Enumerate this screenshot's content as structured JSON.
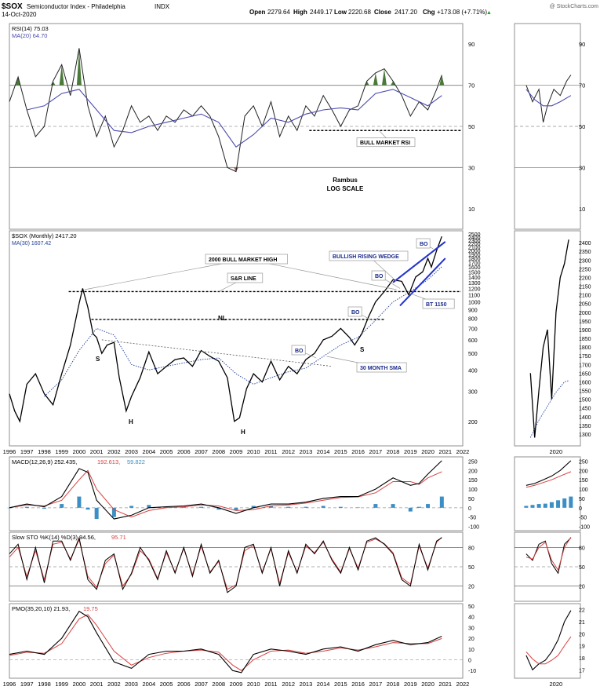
{
  "header": {
    "symbol": "$SOX",
    "name": "Semiconductor Index - Philadelphia",
    "exchange": "INDX",
    "date": "14-Oct-2020",
    "open_label": "Open",
    "open": "2279.64",
    "high_label": "High",
    "high": "2449.17",
    "low_label": "Low",
    "low": "2220.68",
    "close_label": "Close",
    "close": "2417.20",
    "chg_label": "Chg",
    "chg": "+173.08 (+7.71%)",
    "chg_arrow": "▲",
    "watermark": "@ StockCharts.com"
  },
  "colors": {
    "price": "#000000",
    "sma": "#1f3d99",
    "rsi_ma": "#4b4bb0",
    "rsi_fill_high": "#4a7a3a",
    "rsi_fill_low": "#b05a5a",
    "macd_hist": "#3b8fc4",
    "signal": "#d94040",
    "wedge": "#2233cc",
    "callout_text": "#1a2a8a",
    "gray_line": "#7f7f7f",
    "panel_border": "#8f8f8f"
  },
  "chart_data": [
    {
      "type": "line",
      "id": "rsi",
      "legend": [
        "RSI(14) 75.03",
        "MA(20) 64.70"
      ],
      "ylim": [
        0,
        100
      ],
      "yticks": [
        10,
        30,
        50,
        70,
        90
      ],
      "reference_lines": [
        30,
        50,
        70
      ],
      "series": [
        {
          "name": "RSI(14)",
          "x": [
            1996,
            1996.5,
            1997,
            1997.5,
            1998,
            1998.5,
            1999,
            1999.5,
            2000,
            2000.5,
            2001,
            2001.5,
            2002,
            2002.5,
            2003,
            2003.5,
            2004,
            2004.5,
            2005,
            2005.5,
            2006,
            2006.5,
            2007,
            2007.5,
            2008,
            2008.5,
            2009,
            2009.5,
            2010,
            2010.5,
            2011,
            2011.5,
            2012,
            2012.5,
            2013,
            2013.5,
            2014,
            2014.5,
            2015,
            2015.5,
            2016,
            2016.5,
            2017,
            2017.5,
            2018,
            2018.5,
            2019,
            2019.5,
            2020,
            2020.5,
            2020.8
          ],
          "values": [
            62,
            74,
            58,
            45,
            50,
            72,
            80,
            65,
            88,
            60,
            45,
            55,
            40,
            48,
            60,
            52,
            55,
            48,
            55,
            52,
            58,
            55,
            60,
            55,
            45,
            30,
            28,
            55,
            60,
            50,
            62,
            45,
            55,
            48,
            60,
            55,
            65,
            58,
            50,
            58,
            60,
            72,
            76,
            78,
            72,
            65,
            55,
            62,
            58,
            68,
            75
          ]
        },
        {
          "name": "MA(20)",
          "x": [
            1997,
            1998,
            1999,
            2000,
            2001,
            2002,
            2003,
            2004,
            2005,
            2006,
            2007,
            2008,
            2009,
            2010,
            2011,
            2012,
            2013,
            2014,
            2015,
            2016,
            2017,
            2018,
            2019,
            2020,
            2020.8
          ],
          "values": [
            58,
            60,
            66,
            68,
            58,
            48,
            47,
            50,
            52,
            54,
            56,
            52,
            40,
            46,
            54,
            52,
            56,
            58,
            59,
            58,
            66,
            68,
            64,
            60,
            65
          ]
        }
      ],
      "annotations": [
        "BULL MARKET RSI",
        "Rambus",
        "LOG SCALE"
      ]
    },
    {
      "type": "line",
      "id": "price",
      "legend": [
        "$SOX (Monthly) 2417.20",
        "MA(30) 1607.42"
      ],
      "scale": "log",
      "ylim": [
        150,
        2500
      ],
      "yticks": [
        200,
        300,
        400,
        500,
        600,
        700,
        800,
        900,
        1000,
        1100,
        1200,
        1300,
        1400,
        1500,
        1600,
        1700,
        1800,
        1900,
        2000,
        2100,
        2200,
        2300,
        2400,
        2500
      ],
      "xticks": [
        "1996",
        "1997",
        "1998",
        "1999",
        "2000",
        "2001",
        "2002",
        "2003",
        "2004",
        "2005",
        "2006",
        "2007",
        "2008",
        "2009",
        "2010",
        "2011",
        "2012",
        "2013",
        "2014",
        "2015",
        "2016",
        "2017",
        "2018",
        "2019",
        "2020",
        "2021",
        "2022"
      ],
      "series": [
        {
          "name": "$SOX (Monthly)",
          "x": [
            1996,
            1996.3,
            1996.6,
            1997,
            1997.5,
            1998,
            1998.5,
            1999,
            1999.5,
            2000,
            2000.2,
            2000.5,
            2000.8,
            2001,
            2001.3,
            2001.6,
            2002,
            2002.3,
            2002.7,
            2003,
            2003.5,
            2004,
            2004.5,
            2005,
            2005.5,
            2006,
            2006.5,
            2007,
            2007.5,
            2008,
            2008.5,
            2008.9,
            2009.2,
            2009.6,
            2010,
            2010.5,
            2011,
            2011.5,
            2012,
            2012.5,
            2013,
            2013.5,
            2014,
            2014.5,
            2015,
            2015.5,
            2015.8,
            2016.2,
            2016.6,
            2017,
            2017.5,
            2018,
            2018.5,
            2018.9,
            2019.3,
            2019.7,
            2020,
            2020.2,
            2020.5,
            2020.8
          ],
          "values": [
            290,
            230,
            200,
            330,
            380,
            290,
            250,
            380,
            560,
            980,
            1200,
            930,
            650,
            620,
            500,
            560,
            580,
            360,
            230,
            280,
            360,
            510,
            380,
            420,
            460,
            470,
            420,
            520,
            480,
            450,
            360,
            200,
            210,
            310,
            380,
            340,
            450,
            350,
            420,
            380,
            460,
            500,
            600,
            630,
            700,
            620,
            560,
            650,
            820,
            1000,
            1150,
            1350,
            1320,
            1100,
            1400,
            1500,
            1800,
            1600,
            2000,
            2417
          ]
        },
        {
          "name": "MA(30)",
          "x": [
            1998,
            1999,
            2000,
            2001,
            2002,
            2003,
            2004,
            2005,
            2006,
            2007,
            2008,
            2009,
            2010,
            2011,
            2012,
            2013,
            2014,
            2015,
            2016,
            2017,
            2018,
            2019,
            2020,
            2020.8
          ],
          "values": [
            280,
            350,
            520,
            700,
            640,
            430,
            400,
            420,
            440,
            460,
            470,
            380,
            330,
            360,
            390,
            410,
            480,
            560,
            620,
            780,
            1000,
            1150,
            1350,
            1607
          ]
        }
      ],
      "annotations": [
        "2000 BULL MARKET HIGH",
        "S&R LINE",
        "NL",
        "S",
        "H",
        "H",
        "S",
        "BO",
        "BO",
        "BO",
        "BO",
        "30 MONTH SMA",
        "BULLISH RISING WEDGE",
        "BT 1150"
      ],
      "levels": [
        {
          "value": 1150,
          "label": "S&R LINE"
        },
        {
          "value": 800,
          "label": "NL"
        }
      ],
      "inset": {
        "xticks": [
          "2020"
        ],
        "yticks": [
          1300,
          1350,
          1400,
          1450,
          1500,
          1550,
          1600,
          1650,
          1700,
          1750,
          1800,
          1850,
          1900,
          1950,
          2000,
          2050,
          2100,
          2150,
          2200,
          2250,
          2300,
          2350,
          2400
        ],
        "ylim": [
          1250,
          2450
        ],
        "x": [
          2019.9,
          2020.0,
          2020.1,
          2020.2,
          2020.3,
          2020.4,
          2020.5,
          2020.6,
          2020.7,
          2020.8
        ],
        "values": [
          1650,
          1280,
          1550,
          1800,
          1900,
          1500,
          2000,
          2200,
          2280,
          2417
        ],
        "ma": [
          1280,
          1330,
          1380,
          1420,
          1460,
          1500,
          1540,
          1570,
          1600,
          1607
        ]
      }
    },
    {
      "type": "line",
      "id": "macd",
      "legend": [
        "MACD(12,26,9) 252.435,",
        "192.613,",
        "59.822"
      ],
      "ylim": [
        -110,
        260
      ],
      "yticks": [
        -100,
        -50,
        0,
        50,
        100,
        150,
        200,
        250
      ],
      "x": [
        1996,
        1997,
        1998,
        1999,
        2000,
        2000.5,
        2001,
        2002,
        2003,
        2004,
        2005,
        2006,
        2007,
        2008,
        2009,
        2010,
        2011,
        2012,
        2013,
        2014,
        2015,
        2016,
        2017,
        2018,
        2019,
        2019.5,
        2020,
        2020.8
      ],
      "series": [
        {
          "name": "MACD",
          "values": [
            0,
            20,
            5,
            60,
            210,
            190,
            40,
            -60,
            -40,
            0,
            5,
            10,
            20,
            0,
            -30,
            0,
            20,
            20,
            30,
            50,
            60,
            60,
            100,
            160,
            120,
            130,
            180,
            252
          ]
        },
        {
          "name": "Signal",
          "values": [
            0,
            15,
            10,
            40,
            150,
            200,
            100,
            -10,
            -50,
            -15,
            0,
            5,
            15,
            10,
            -15,
            -10,
            10,
            15,
            25,
            40,
            55,
            58,
            80,
            140,
            140,
            125,
            160,
            193
          ]
        },
        {
          "name": "Histogram",
          "values": [
            0,
            5,
            -5,
            20,
            60,
            -10,
            -60,
            -50,
            10,
            15,
            5,
            5,
            5,
            -10,
            -15,
            10,
            10,
            5,
            5,
            10,
            5,
            2,
            20,
            20,
            -20,
            5,
            20,
            60
          ]
        }
      ],
      "inset": {
        "yticks": [
          -100,
          -50,
          0,
          50,
          100,
          150,
          200,
          250
        ]
      }
    },
    {
      "type": "line",
      "id": "stoch",
      "legend": [
        "Slow STO %K(14) %D(3) 94.56,",
        "95.71"
      ],
      "ylim": [
        0,
        100
      ],
      "yticks": [
        20,
        50,
        80
      ],
      "reference_lines": [
        20,
        50,
        80
      ],
      "x": [
        1996,
        1996.5,
        1997,
        1997.5,
        1998,
        1998.5,
        1999,
        1999.5,
        2000,
        2000.5,
        2001,
        2001.5,
        2002,
        2002.5,
        2003,
        2003.5,
        2004,
        2004.5,
        2005,
        2005.5,
        2006,
        2006.5,
        2007,
        2007.5,
        2008,
        2008.5,
        2009,
        2009.5,
        2010,
        2010.5,
        2011,
        2011.5,
        2012,
        2012.5,
        2013,
        2013.5,
        2014,
        2014.5,
        2015,
        2015.5,
        2016,
        2016.5,
        2017,
        2017.5,
        2018,
        2018.5,
        2019,
        2019.5,
        2020,
        2020.5,
        2020.8
      ],
      "series": [
        {
          "name": "%K",
          "values": [
            70,
            85,
            30,
            80,
            25,
            90,
            90,
            60,
            95,
            30,
            15,
            60,
            70,
            15,
            40,
            80,
            60,
            30,
            75,
            40,
            80,
            35,
            85,
            40,
            60,
            10,
            20,
            80,
            85,
            40,
            80,
            20,
            75,
            40,
            85,
            70,
            90,
            60,
            40,
            80,
            45,
            90,
            95,
            85,
            70,
            30,
            20,
            85,
            45,
            90,
            95
          ]
        },
        {
          "name": "%D",
          "values": [
            65,
            80,
            35,
            75,
            30,
            85,
            88,
            62,
            92,
            35,
            18,
            55,
            68,
            20,
            38,
            75,
            62,
            32,
            72,
            42,
            78,
            38,
            82,
            42,
            58,
            15,
            22,
            75,
            83,
            42,
            78,
            24,
            72,
            42,
            82,
            72,
            88,
            62,
            42,
            78,
            48,
            88,
            93,
            86,
            72,
            33,
            23,
            82,
            48,
            88,
            96
          ]
        }
      ],
      "inset": {
        "yticks": [
          20,
          50,
          80
        ]
      }
    },
    {
      "type": "line",
      "id": "pmo",
      "legend": [
        "PMO(35,20,10) 21.93,",
        "19.75"
      ],
      "ylim": [
        -15,
        50
      ],
      "yticks": [
        -10,
        0,
        10,
        20,
        30,
        40,
        50
      ],
      "reference_lines": [
        0
      ],
      "x": [
        1996,
        1997,
        1998,
        1999,
        2000,
        2000.5,
        2001,
        2002,
        2003,
        2004,
        2005,
        2006,
        2007,
        2008,
        2008.8,
        2009.3,
        2010,
        2011,
        2012,
        2013,
        2014,
        2015,
        2016,
        2017,
        2018,
        2019,
        2020,
        2020.8
      ],
      "series": [
        {
          "name": "PMO",
          "values": [
            5,
            8,
            5,
            20,
            45,
            40,
            25,
            -2,
            -8,
            5,
            8,
            8,
            10,
            5,
            -10,
            -12,
            5,
            10,
            8,
            5,
            10,
            12,
            8,
            14,
            18,
            14,
            16,
            21.9
          ]
        },
        {
          "name": "Signal",
          "values": [
            4,
            7,
            6,
            15,
            38,
            42,
            32,
            8,
            -5,
            2,
            6,
            8,
            9,
            7,
            -5,
            -10,
            0,
            8,
            9,
            6,
            8,
            11,
            9,
            12,
            16,
            15,
            15,
            19.8
          ]
        }
      ],
      "inset": {
        "yticks": [
          17,
          18,
          19,
          20,
          21,
          22
        ]
      }
    }
  ],
  "axis_xticks": [
    "1996",
    "1997",
    "1998",
    "1999",
    "2000",
    "2001",
    "2002",
    "2003",
    "2004",
    "2005",
    "2006",
    "2007",
    "2008",
    "2009",
    "2010",
    "2011",
    "2012",
    "2013",
    "2014",
    "2015",
    "2016",
    "2017",
    "2018",
    "2019",
    "2020",
    "2021",
    "2022"
  ],
  "inset_xtick": "2020"
}
